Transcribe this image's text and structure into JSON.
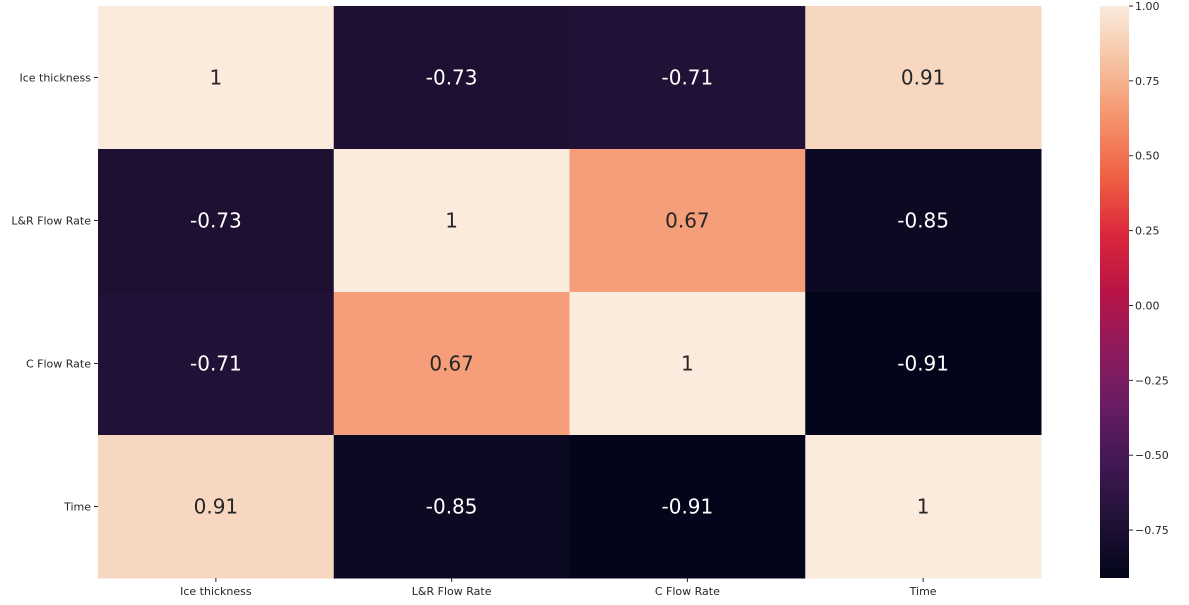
{
  "chart_data": {
    "type": "heatmap",
    "title": "",
    "xlabel": "",
    "ylabel": "",
    "x_categories": [
      "Ice thickness",
      "L&R Flow Rate",
      "C Flow Rate",
      "Time"
    ],
    "y_categories": [
      "Ice thickness",
      "L&R Flow Rate",
      "C Flow Rate",
      "Time"
    ],
    "matrix": [
      [
        1,
        -0.73,
        -0.71,
        0.91
      ],
      [
        -0.73,
        1,
        0.67,
        -0.85
      ],
      [
        -0.71,
        0.67,
        1,
        -0.91
      ],
      [
        0.91,
        -0.85,
        -0.91,
        1
      ]
    ],
    "annotations": [
      [
        "1",
        "-0.73",
        "-0.71",
        "0.91"
      ],
      [
        "-0.73",
        "1",
        "0.67",
        "-0.85"
      ],
      [
        "-0.71",
        "0.67",
        "1",
        "-0.91"
      ],
      [
        "0.91",
        "-0.85",
        "-0.91",
        "1"
      ]
    ],
    "colormap": "rocket",
    "color_range": [
      -0.91,
      1.0
    ],
    "colorbar": {
      "ticks": [
        1.0,
        0.75,
        0.5,
        0.25,
        0.0,
        -0.25,
        -0.5,
        -0.75
      ],
      "tick_labels": [
        "1.00",
        "0.75",
        "0.50",
        "0.25",
        "0.00",
        "−0.25",
        "−0.50",
        "−0.75"
      ]
    },
    "legend_position": "right",
    "grid": false
  }
}
